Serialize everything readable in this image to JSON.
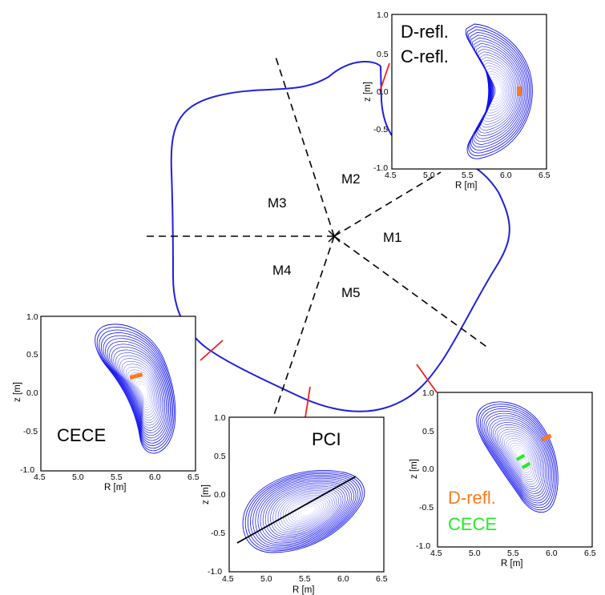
{
  "modules": [
    "M1",
    "M2",
    "M3",
    "M4",
    "M5"
  ],
  "colors": {
    "contour": "#1010ee",
    "boundary": "#2020dd",
    "port_marker": "#ee2020",
    "d_refl": "#ff7a1a",
    "cece": "#22ee22",
    "pci_chord": "#000000"
  },
  "insets": [
    {
      "id": "top",
      "labels": [
        {
          "text": "D-refl.",
          "color": "#000000"
        },
        {
          "text": "C-refl.",
          "color": "#000000"
        }
      ],
      "x_ticks": [
        "4.5",
        "5.0",
        "5.5",
        "6.0",
        "6.5"
      ],
      "y_ticks": [
        "1.0",
        "0.5",
        "0.0",
        "-0.5",
        "-1.0"
      ],
      "xlabel": "R [m]",
      "ylabel": "z [m]"
    },
    {
      "id": "left",
      "labels": [
        {
          "text": "CECE",
          "color": "#000000"
        }
      ],
      "x_ticks": [
        "4.5",
        "5.0",
        "5.5",
        "6.0",
        "6.5"
      ],
      "y_ticks": [
        "1.0",
        "0.5",
        "0.0",
        "-0.5",
        "-1.0"
      ],
      "xlabel": "R [m]",
      "ylabel": "z [m]"
    },
    {
      "id": "bottom",
      "labels": [
        {
          "text": "PCI",
          "color": "#000000"
        }
      ],
      "x_ticks": [
        "4.5",
        "5.0",
        "5.5",
        "6.0",
        "6.5"
      ],
      "y_ticks": [
        "1.0",
        "0.5",
        "0.0",
        "-0.5",
        "-1.0"
      ],
      "xlabel": "R [m]",
      "ylabel": "z [m]"
    },
    {
      "id": "right",
      "labels": [
        {
          "text": "D-refl.",
          "color": "#ff7a1a"
        },
        {
          "text": "CECE",
          "color": "#22ee22"
        }
      ],
      "x_ticks": [
        "4.5",
        "5.0",
        "5.5",
        "6.0",
        "6.5"
      ],
      "y_ticks": [
        "1.0",
        "0.5",
        "0.0",
        "-0.5",
        "-1.0"
      ],
      "xlabel": "R [m]",
      "ylabel": "z [m]"
    }
  ]
}
